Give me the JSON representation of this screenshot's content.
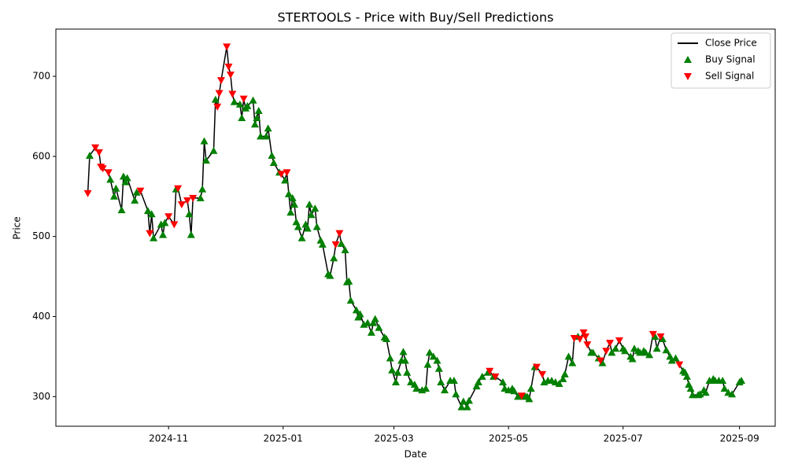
{
  "chart_data": {
    "type": "line",
    "title": "STERTOOLS - Price with Buy/Sell Predictions",
    "xlabel": "Date",
    "ylabel": "Price",
    "xlim": [
      "2024-09-02",
      "2025-09-20"
    ],
    "xticks": [
      {
        "value": "2024-11-01",
        "label": "2024-11"
      },
      {
        "value": "2025-01-01",
        "label": "2025-01"
      },
      {
        "value": "2025-03-01",
        "label": "2025-03"
      },
      {
        "value": "2025-05-01",
        "label": "2025-05"
      },
      {
        "value": "2025-07-01",
        "label": "2025-07"
      },
      {
        "value": "2025-09-01",
        "label": "2025-09"
      }
    ],
    "ylim": [
      263,
      759
    ],
    "yticks": [
      300,
      400,
      500,
      600,
      700
    ],
    "grid": false,
    "legend": "upper right",
    "series": [
      {
        "name": "Close Price",
        "type": "line",
        "color": "#000000",
        "x": [
          "2024-09-19",
          "2024-09-20",
          "2024-09-23",
          "2024-09-25",
          "2024-09-26",
          "2024-09-27",
          "2024-09-30",
          "2024-10-01",
          "2024-10-03",
          "2024-10-04",
          "2024-10-07",
          "2024-10-08",
          "2024-10-09",
          "2024-10-10",
          "2024-10-14",
          "2024-10-15",
          "2024-10-17",
          "2024-10-21",
          "2024-10-22",
          "2024-10-23",
          "2024-10-24",
          "2024-10-28",
          "2024-10-29",
          "2024-10-30",
          "2024-11-01",
          "2024-11-04",
          "2024-11-05",
          "2024-11-06",
          "2024-11-08",
          "2024-11-11",
          "2024-11-12",
          "2024-11-13",
          "2024-11-14",
          "2024-11-18",
          "2024-11-19",
          "2024-11-20",
          "2024-11-21",
          "2024-11-25",
          "2024-11-26",
          "2024-11-27",
          "2024-11-28",
          "2024-11-29",
          "2024-12-02",
          "2024-12-03",
          "2024-12-04",
          "2024-12-05",
          "2024-12-06",
          "2024-12-09",
          "2024-12-10",
          "2024-12-11",
          "2024-12-12",
          "2024-12-13",
          "2024-12-16",
          "2024-12-17",
          "2024-12-18",
          "2024-12-19",
          "2024-12-20",
          "2024-12-23",
          "2024-12-24",
          "2024-12-26",
          "2024-12-27",
          "2024-12-30",
          "2024-12-31",
          "2025-01-02",
          "2025-01-03",
          "2025-01-04",
          "2025-01-05",
          "2025-01-06",
          "2025-01-07",
          "2025-01-08",
          "2025-01-09",
          "2025-01-11",
          "2025-01-13",
          "2025-01-14",
          "2025-01-15",
          "2025-01-16",
          "2025-01-18",
          "2025-01-19",
          "2025-01-21",
          "2025-01-22",
          "2025-01-25",
          "2025-01-26",
          "2025-01-28",
          "2025-01-29",
          "2025-01-31",
          "2025-02-01",
          "2025-02-03",
          "2025-02-04",
          "2025-02-05",
          "2025-02-06",
          "2025-02-09",
          "2025-02-10",
          "2025-02-11",
          "2025-02-13",
          "2025-02-15",
          "2025-02-17",
          "2025-02-18",
          "2025-02-19",
          "2025-02-21",
          "2025-02-24",
          "2025-02-25",
          "2025-02-27",
          "2025-02-28",
          "2025-03-02",
          "2025-03-03",
          "2025-03-05",
          "2025-03-06",
          "2025-03-07",
          "2025-03-08",
          "2025-03-10",
          "2025-03-12",
          "2025-03-13",
          "2025-03-16",
          "2025-03-18",
          "2025-03-19",
          "2025-03-20",
          "2025-03-22",
          "2025-03-24",
          "2025-03-25",
          "2025-03-26",
          "2025-03-28",
          "2025-03-31",
          "2025-04-02",
          "2025-04-03",
          "2025-04-06",
          "2025-04-07",
          "2025-04-09",
          "2025-04-10",
          "2025-04-14",
          "2025-04-15",
          "2025-04-17",
          "2025-04-20",
          "2025-04-21",
          "2025-04-23",
          "2025-04-24",
          "2025-04-28",
          "2025-04-29",
          "2025-05-01",
          "2025-05-03",
          "2025-05-04",
          "2025-05-06",
          "2025-05-08",
          "2025-05-10",
          "2025-05-11",
          "2025-05-12",
          "2025-05-13",
          "2025-05-15",
          "2025-05-16",
          "2025-05-19",
          "2025-05-20",
          "2025-05-22",
          "2025-05-24",
          "2025-05-26",
          "2025-05-28",
          "2025-05-30",
          "2025-05-31",
          "2025-06-02",
          "2025-06-04",
          "2025-06-05",
          "2025-06-07",
          "2025-06-08",
          "2025-06-10",
          "2025-06-11",
          "2025-06-12",
          "2025-06-14",
          "2025-06-15",
          "2025-06-18",
          "2025-06-19",
          "2025-06-20",
          "2025-06-22",
          "2025-06-24",
          "2025-06-25",
          "2025-06-27",
          "2025-06-29",
          "2025-07-01",
          "2025-07-02",
          "2025-07-05",
          "2025-07-06",
          "2025-07-07",
          "2025-07-09",
          "2025-07-10",
          "2025-07-12",
          "2025-07-13",
          "2025-07-15",
          "2025-07-17",
          "2025-07-18",
          "2025-07-19",
          "2025-07-21",
          "2025-07-22",
          "2025-07-24",
          "2025-07-26",
          "2025-07-27",
          "2025-07-29",
          "2025-07-31",
          "2025-08-02",
          "2025-08-03",
          "2025-08-04",
          "2025-08-05",
          "2025-08-06",
          "2025-08-07",
          "2025-08-10",
          "2025-08-11",
          "2025-08-13",
          "2025-08-14",
          "2025-08-16",
          "2025-08-18",
          "2025-08-19",
          "2025-08-21",
          "2025-08-23",
          "2025-08-24",
          "2025-08-26",
          "2025-08-28",
          "2025-09-01",
          "2025-09-02"
        ],
        "values": [
          554,
          601,
          611,
          605,
          587,
          585,
          580,
          571,
          550,
          560,
          533,
          575,
          568,
          573,
          545,
          555,
          557,
          532,
          504,
          528,
          498,
          515,
          502,
          517,
          525,
          515,
          559,
          560,
          540,
          545,
          528,
          502,
          548,
          548,
          559,
          619,
          595,
          607,
          671,
          662,
          679,
          695,
          737,
          712,
          702,
          678,
          668,
          665,
          648,
          672,
          660,
          663,
          670,
          640,
          648,
          657,
          625,
          625,
          635,
          601,
          592,
          580,
          578,
          570,
          580,
          553,
          530,
          548,
          540,
          518,
          512,
          498,
          515,
          510,
          540,
          527,
          535,
          512,
          495,
          490,
          453,
          451,
          473,
          490,
          504,
          491,
          483,
          443,
          444,
          420,
          408,
          399,
          403,
          390,
          392,
          380,
          392,
          397,
          386,
          374,
          372,
          348,
          333,
          318,
          330,
          345,
          356,
          345,
          330,
          318,
          315,
          310,
          308,
          310,
          340,
          355,
          350,
          345,
          335,
          318,
          308,
          320,
          320,
          303,
          287,
          294,
          287,
          295,
          313,
          318,
          325,
          330,
          332,
          325,
          325,
          318,
          310,
          308,
          310,
          307,
          300,
          301,
          300,
          300,
          297,
          310,
          337,
          337,
          328,
          318,
          320,
          320,
          318,
          316,
          322,
          328,
          350,
          342,
          373,
          375,
          372,
          380,
          375,
          365,
          355,
          355,
          348,
          345,
          342,
          357,
          367,
          355,
          360,
          370,
          360,
          357,
          350,
          347,
          360,
          357,
          355,
          357,
          355,
          352,
          378,
          375,
          360,
          375,
          372,
          358,
          350,
          345,
          348,
          340,
          332,
          330,
          325,
          315,
          310,
          302,
          302,
          303,
          308,
          305,
          320,
          322,
          320,
          320,
          320,
          310,
          305,
          303,
          318,
          320
        ]
      },
      {
        "name": "Buy Signal",
        "type": "scatter",
        "marker": "^",
        "color": "#008000",
        "x": [
          "2024-09-20",
          "2024-10-01",
          "2024-10-03",
          "2024-10-04",
          "2024-10-07",
          "2024-10-08",
          "2024-10-09",
          "2024-10-10",
          "2024-10-14",
          "2024-10-15",
          "2024-10-21",
          "2024-10-23",
          "2024-10-24",
          "2024-10-28",
          "2024-10-29",
          "2024-10-30",
          "2024-11-05",
          "2024-11-12",
          "2024-11-13",
          "2024-11-18",
          "2024-11-19",
          "2024-11-20",
          "2024-11-21",
          "2024-11-25",
          "2024-11-26",
          "2024-12-06",
          "2024-12-09",
          "2024-12-10",
          "2024-12-12",
          "2024-12-13",
          "2024-12-16",
          "2024-12-17",
          "2024-12-18",
          "2024-12-19",
          "2024-12-20",
          "2024-12-23",
          "2024-12-24",
          "2024-12-26",
          "2024-12-27",
          "2024-12-30",
          "2025-01-02",
          "2025-01-04",
          "2025-01-05",
          "2025-01-06",
          "2025-01-07",
          "2025-01-08",
          "2025-01-09",
          "2025-01-11",
          "2025-01-13",
          "2025-01-14",
          "2025-01-15",
          "2025-01-16",
          "2025-01-18",
          "2025-01-19",
          "2025-01-21",
          "2025-01-22",
          "2025-01-25",
          "2025-01-26",
          "2025-01-28",
          "2025-02-01",
          "2025-02-03",
          "2025-02-04",
          "2025-02-05",
          "2025-02-06",
          "2025-02-09",
          "2025-02-10",
          "2025-02-11",
          "2025-02-13",
          "2025-02-15",
          "2025-02-17",
          "2025-02-18",
          "2025-02-19",
          "2025-02-21",
          "2025-02-24",
          "2025-02-25",
          "2025-02-27",
          "2025-02-28",
          "2025-03-02",
          "2025-03-03",
          "2025-03-05",
          "2025-03-06",
          "2025-03-07",
          "2025-03-08",
          "2025-03-10",
          "2025-03-12",
          "2025-03-13",
          "2025-03-16",
          "2025-03-18",
          "2025-03-19",
          "2025-03-20",
          "2025-03-22",
          "2025-03-24",
          "2025-03-25",
          "2025-03-26",
          "2025-03-28",
          "2025-03-31",
          "2025-04-02",
          "2025-04-03",
          "2025-04-06",
          "2025-04-07",
          "2025-04-09",
          "2025-04-10",
          "2025-04-14",
          "2025-04-15",
          "2025-04-17",
          "2025-04-20",
          "2025-04-23",
          "2025-04-28",
          "2025-04-29",
          "2025-05-01",
          "2025-05-03",
          "2025-05-04",
          "2025-05-06",
          "2025-05-10",
          "2025-05-11",
          "2025-05-12",
          "2025-05-13",
          "2025-05-15",
          "2025-05-20",
          "2025-05-22",
          "2025-05-24",
          "2025-05-26",
          "2025-05-28",
          "2025-05-30",
          "2025-05-31",
          "2025-06-02",
          "2025-06-04",
          "2025-06-07",
          "2025-06-14",
          "2025-06-15",
          "2025-06-18",
          "2025-06-20",
          "2025-06-25",
          "2025-06-27",
          "2025-07-01",
          "2025-07-02",
          "2025-07-05",
          "2025-07-06",
          "2025-07-07",
          "2025-07-09",
          "2025-07-10",
          "2025-07-12",
          "2025-07-13",
          "2025-07-15",
          "2025-07-18",
          "2025-07-19",
          "2025-07-22",
          "2025-07-24",
          "2025-07-26",
          "2025-07-27",
          "2025-07-29",
          "2025-08-02",
          "2025-08-03",
          "2025-08-04",
          "2025-08-05",
          "2025-08-06",
          "2025-08-07",
          "2025-08-10",
          "2025-08-11",
          "2025-08-13",
          "2025-08-14",
          "2025-08-16",
          "2025-08-18",
          "2025-08-19",
          "2025-08-21",
          "2025-08-23",
          "2025-08-24",
          "2025-08-26",
          "2025-08-28",
          "2025-09-01",
          "2025-09-02"
        ],
        "values": [
          601,
          571,
          550,
          560,
          533,
          575,
          568,
          573,
          545,
          555,
          532,
          528,
          498,
          515,
          502,
          517,
          559,
          528,
          502,
          548,
          559,
          619,
          595,
          607,
          671,
          668,
          665,
          648,
          660,
          663,
          670,
          640,
          648,
          657,
          625,
          625,
          635,
          601,
          592,
          580,
          570,
          553,
          530,
          548,
          540,
          518,
          512,
          498,
          515,
          510,
          540,
          527,
          535,
          512,
          495,
          490,
          453,
          451,
          473,
          491,
          483,
          443,
          444,
          420,
          408,
          399,
          403,
          390,
          392,
          380,
          392,
          397,
          386,
          374,
          372,
          348,
          333,
          318,
          330,
          345,
          356,
          345,
          330,
          318,
          315,
          310,
          308,
          310,
          340,
          355,
          350,
          345,
          335,
          318,
          308,
          320,
          320,
          303,
          287,
          294,
          287,
          295,
          313,
          318,
          325,
          330,
          325,
          318,
          310,
          308,
          310,
          307,
          300,
          300,
          300,
          297,
          310,
          337,
          318,
          320,
          320,
          318,
          316,
          322,
          328,
          350,
          342,
          375,
          355,
          355,
          348,
          342,
          355,
          360,
          360,
          357,
          350,
          347,
          360,
          357,
          355,
          357,
          355,
          352,
          375,
          360,
          372,
          358,
          350,
          345,
          348,
          332,
          330,
          325,
          315,
          310,
          302,
          302,
          303,
          308,
          305,
          320,
          322,
          320,
          320,
          320,
          310,
          305,
          303,
          318,
          320
        ]
      },
      {
        "name": "Sell Signal",
        "type": "scatter",
        "marker": "v",
        "color": "#ff0000",
        "x": [
          "2024-09-19",
          "2024-09-23",
          "2024-09-25",
          "2024-09-26",
          "2024-09-27",
          "2024-09-30",
          "2024-10-17",
          "2024-10-22",
          "2024-11-01",
          "2024-11-04",
          "2024-11-06",
          "2024-11-08",
          "2024-11-11",
          "2024-11-14",
          "2024-11-27",
          "2024-11-28",
          "2024-11-29",
          "2024-12-02",
          "2024-12-03",
          "2024-12-04",
          "2024-12-05",
          "2024-12-11",
          "2024-12-31",
          "2025-01-03",
          "2025-01-29",
          "2025-01-31",
          "2025-04-21",
          "2025-04-24",
          "2025-05-08",
          "2025-05-16",
          "2025-05-19",
          "2025-06-05",
          "2025-06-08",
          "2025-06-10",
          "2025-06-11",
          "2025-06-12",
          "2025-06-19",
          "2025-06-22",
          "2025-06-24",
          "2025-06-29",
          "2025-07-17",
          "2025-07-21",
          "2025-07-31"
        ],
        "values": [
          554,
          611,
          605,
          587,
          585,
          580,
          557,
          504,
          525,
          515,
          560,
          540,
          545,
          548,
          662,
          679,
          695,
          737,
          712,
          702,
          678,
          672,
          578,
          580,
          490,
          504,
          332,
          325,
          301,
          337,
          328,
          373,
          372,
          380,
          375,
          365,
          345,
          357,
          367,
          370,
          378,
          375,
          340
        ]
      }
    ]
  }
}
